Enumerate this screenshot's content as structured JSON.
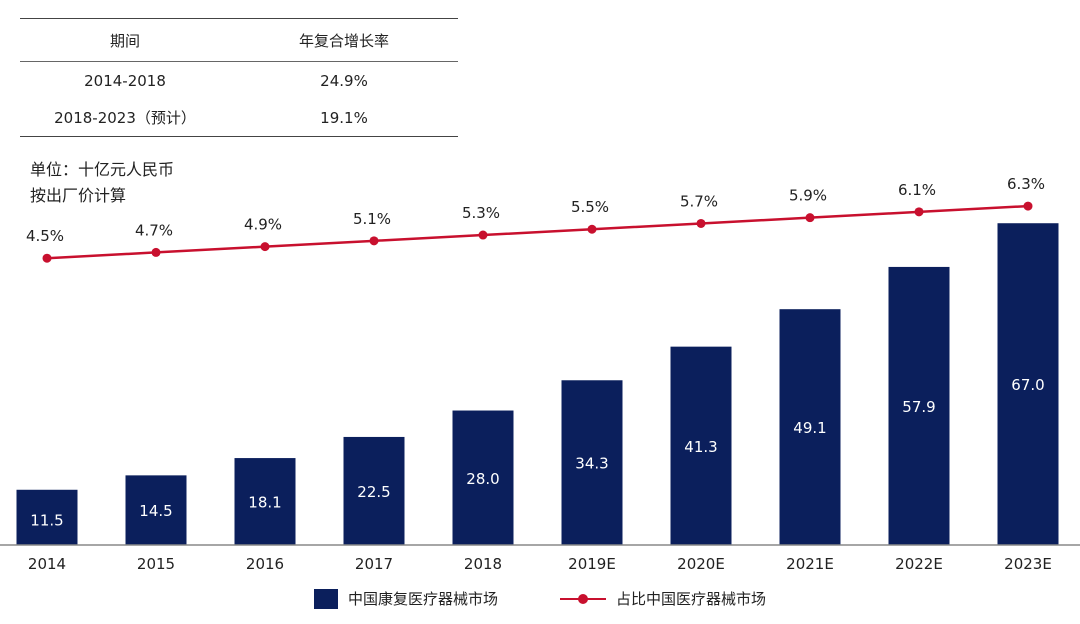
{
  "cagr_table": {
    "headers": [
      "期间",
      "年复合增长率"
    ],
    "rows": [
      [
        "2014-2018",
        "24.9%"
      ],
      [
        "2018-2023（预计）",
        "19.1%"
      ]
    ]
  },
  "notes": {
    "unit": "单位：十亿元人民币",
    "basis": "按出厂价计算"
  },
  "chart_data": {
    "type": "bar",
    "categories": [
      "2014",
      "2015",
      "2016",
      "2017",
      "2018",
      "2019E",
      "2020E",
      "2021E",
      "2022E",
      "2023E"
    ],
    "series": [
      {
        "name": "中国康复医疗器械市场",
        "type": "bar",
        "axis": "left",
        "values": [
          11.5,
          14.5,
          18.1,
          22.5,
          28.0,
          34.3,
          41.3,
          49.1,
          57.9,
          67.0
        ],
        "labels": [
          "11.5",
          "14.5",
          "18.1",
          "22.5",
          "28.0",
          "34.3",
          "41.3",
          "49.1",
          "57.9",
          "67.0"
        ],
        "color": "#0b1f5c"
      },
      {
        "name": "占比中国医疗器械市场",
        "type": "line",
        "axis": "right",
        "values": [
          4.5,
          4.7,
          4.9,
          5.1,
          5.3,
          5.5,
          5.7,
          5.9,
          6.1,
          6.3
        ],
        "labels": [
          "4.5%",
          "4.7%",
          "4.9%",
          "5.1%",
          "5.3%",
          "5.5%",
          "5.7%",
          "5.9%",
          "6.1%",
          "6.3%"
        ],
        "color": "#c8102e"
      }
    ],
    "ylim": [
      0,
      76
    ],
    "y2lim": [
      -5.4,
      7.2
    ],
    "legend": "bottom",
    "grid": false
  }
}
